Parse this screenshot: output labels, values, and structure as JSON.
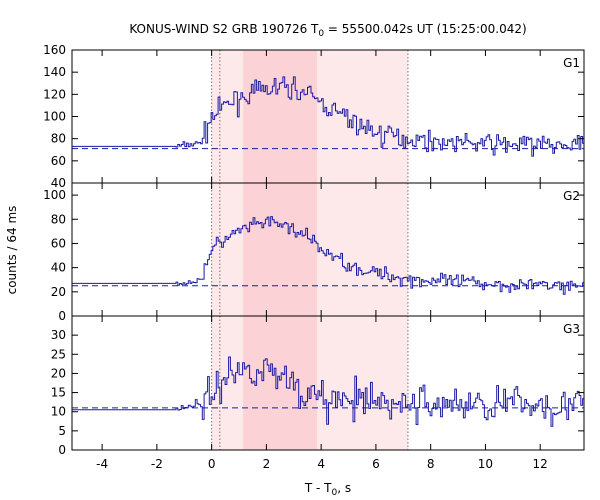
{
  "chart_data": {
    "type": "line",
    "title": "KONUS-WIND S2 GRB 190726 T",
    "title_sub": "0",
    "title_rest": " = 55500.042s UT (15:25:00.042)",
    "ylabel": "counts / 64 ms",
    "xlabel_main": "T - T",
    "xlabel_sub": "0",
    "xlabel_rest": ", s",
    "xlim": [
      -5.1,
      13.6
    ],
    "xticks": [
      -4,
      -2,
      0,
      2,
      4,
      6,
      8,
      10,
      12
    ],
    "xtick_labels": [
      "-4",
      "-2",
      "0",
      "2",
      "4",
      "6",
      "8",
      "10",
      "12"
    ],
    "line_color": "#1a1aa6",
    "background_color": "#1a1aa6",
    "shade_light": "#fde9ea",
    "shade_dark": "#fbd3d7",
    "interval_light": [
      0.0,
      7.17
    ],
    "interval_dark": [
      1.15,
      3.85
    ],
    "vlines": [
      0.0,
      0.3,
      7.17
    ],
    "step_dt": 0.064,
    "panels": [
      {
        "name": "G1",
        "ylim": [
          40,
          160
        ],
        "yticks": [
          40,
          60,
          80,
          100,
          120,
          140,
          160
        ],
        "ytick_labels": [
          "40",
          "60",
          "80",
          "100",
          "120",
          "140",
          "160"
        ],
        "background": 71,
        "anchors": [
          [
            -5.1,
            73
          ],
          [
            -1.3,
            73
          ],
          [
            -0.4,
            76
          ],
          [
            -0.2,
            87
          ],
          [
            0.0,
            99
          ],
          [
            0.4,
            108
          ],
          [
            1.0,
            117
          ],
          [
            2.0,
            124
          ],
          [
            2.6,
            127
          ],
          [
            3.2,
            124
          ],
          [
            3.9,
            114
          ],
          [
            4.6,
            103
          ],
          [
            5.4,
            92
          ],
          [
            6.2,
            84
          ],
          [
            7.2,
            80
          ],
          [
            8.5,
            77
          ],
          [
            10.5,
            75
          ],
          [
            13.6,
            74
          ]
        ],
        "noise": 8
      },
      {
        "name": "G2",
        "ylim": [
          0,
          110
        ],
        "yticks": [
          0,
          20,
          40,
          60,
          80,
          100
        ],
        "ytick_labels": [
          "0",
          "20",
          "40",
          "60",
          "80",
          "100"
        ],
        "background": 25,
        "anchors": [
          [
            -5.1,
            27
          ],
          [
            -1.3,
            27
          ],
          [
            -0.4,
            29
          ],
          [
            -0.2,
            44
          ],
          [
            0.0,
            55
          ],
          [
            0.4,
            62
          ],
          [
            1.0,
            70
          ],
          [
            2.0,
            78
          ],
          [
            2.8,
            74
          ],
          [
            3.5,
            65
          ],
          [
            4.0,
            55
          ],
          [
            4.8,
            45
          ],
          [
            5.5,
            38
          ],
          [
            6.5,
            33
          ],
          [
            7.5,
            30
          ],
          [
            9,
            28
          ],
          [
            11,
            26
          ],
          [
            13.6,
            25
          ]
        ],
        "noise": 5
      },
      {
        "name": "G3",
        "ylim": [
          0,
          35
        ],
        "yticks": [
          0,
          5,
          10,
          15,
          20,
          25,
          30
        ],
        "ytick_labels": [
          "0",
          "5",
          "10",
          "15",
          "20",
          "25",
          "30"
        ],
        "background": 11,
        "anchors": [
          [
            -5.1,
            10.5
          ],
          [
            -1.3,
            11
          ],
          [
            -0.4,
            12
          ],
          [
            0.0,
            14
          ],
          [
            0.4,
            19
          ],
          [
            1.2,
            21
          ],
          [
            2.0,
            21
          ],
          [
            2.8,
            19
          ],
          [
            3.4,
            15
          ],
          [
            4.0,
            13
          ],
          [
            5.5,
            12.5
          ],
          [
            7.5,
            12
          ],
          [
            10,
            12
          ],
          [
            13.6,
            12
          ]
        ],
        "noise": 4
      }
    ]
  }
}
